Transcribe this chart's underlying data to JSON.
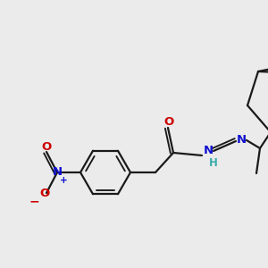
{
  "background_color": "#ebebeb",
  "bond_color": "#1a1a1a",
  "bond_width": 1.6,
  "figsize": [
    3.0,
    3.0
  ],
  "dpi": 100,
  "colors": {
    "N": "#1010d0",
    "O": "#cc0000",
    "H": "#3aacac",
    "C": "#1a1a1a"
  }
}
